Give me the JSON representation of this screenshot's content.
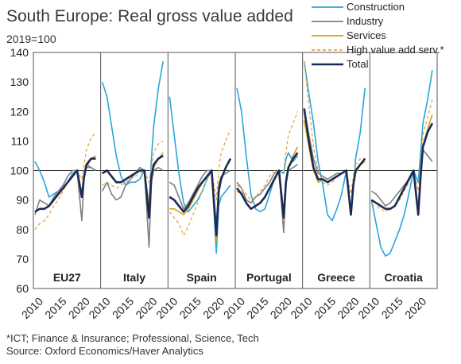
{
  "chart_data": {
    "type": "line",
    "title": "South Europe: Real gross value added",
    "subtitle": "2019=100",
    "ylim": [
      60,
      140
    ],
    "yticks": [
      60,
      70,
      80,
      90,
      100,
      110,
      120,
      130,
      140
    ],
    "xticks": [
      "2010",
      "2015",
      "2020"
    ],
    "legend_position": "top-right",
    "footnote": "*ICT; Finance & Insurance; Professional, Science, Tech",
    "source": "Source: Oxford Economics/Haver Analytics",
    "series": [
      {
        "key": "construction",
        "name": "Construction",
        "color": "#2aa6d8",
        "dash": false
      },
      {
        "key": "industry",
        "name": "Industry",
        "color": "#7f7f7f",
        "dash": false
      },
      {
        "key": "services",
        "name": "Services",
        "color": "#d6a21e",
        "dash": false
      },
      {
        "key": "hvas",
        "name": "High value add serv.*",
        "color": "#e0a84a",
        "dash": true
      },
      {
        "key": "total",
        "name": "Total",
        "color": "#1b2a55",
        "dash": false
      }
    ],
    "panels": [
      {
        "name": "EU27",
        "x": [
          2010,
          2011,
          2012,
          2013,
          2014,
          2015,
          2016,
          2017,
          2018,
          2019,
          2020,
          2020.5,
          2021,
          2022,
          2023
        ],
        "construction": [
          103,
          100,
          96,
          91,
          92,
          93,
          94,
          96,
          99,
          100,
          91,
          97,
          101,
          101,
          100
        ],
        "industry": [
          85,
          90,
          89,
          88,
          91,
          93,
          95,
          98,
          100,
          100,
          83,
          97,
          102,
          101,
          100
        ],
        "services": [
          86,
          87,
          87,
          88,
          90,
          92,
          94,
          96,
          98,
          100,
          92,
          98,
          101,
          104,
          105
        ],
        "hvas": [
          80,
          82,
          83,
          85,
          88,
          90,
          93,
          96,
          98,
          100,
          97,
          102,
          107,
          111,
          113
        ],
        "total": [
          86,
          87,
          87,
          88,
          90,
          92,
          94,
          96,
          98,
          100,
          91,
          98,
          102,
          104,
          104
        ]
      },
      {
        "name": "Italy",
        "x": [
          2010,
          2011,
          2012,
          2013,
          2014,
          2015,
          2016,
          2017,
          2018,
          2019,
          2020,
          2020.5,
          2021,
          2022,
          2023
        ],
        "construction": [
          130,
          125,
          115,
          105,
          98,
          95,
          96,
          96,
          97,
          100,
          88,
          104,
          115,
          128,
          137
        ],
        "industry": [
          93,
          96,
          92,
          90,
          91,
          95,
          97,
          99,
          101,
          100,
          74,
          96,
          100,
          101,
          100
        ],
        "services": [
          99,
          100,
          98,
          96,
          96,
          97,
          98,
          99,
          100,
          100,
          88,
          97,
          101,
          104,
          106
        ],
        "hvas": [
          95,
          96,
          95,
          94,
          95,
          96,
          97,
          98,
          99,
          100,
          96,
          101,
          106,
          109,
          110
        ],
        "total": [
          99,
          100,
          98,
          96,
          96,
          97,
          98,
          99,
          100,
          100,
          84,
          98,
          102,
          104,
          105
        ]
      },
      {
        "name": "Spain",
        "x": [
          2010,
          2011,
          2012,
          2013,
          2014,
          2015,
          2016,
          2017,
          2018,
          2019,
          2020,
          2020.5,
          2021,
          2022,
          2023
        ],
        "construction": [
          125,
          112,
          99,
          89,
          86,
          88,
          90,
          93,
          97,
          100,
          72,
          88,
          91,
          93,
          95
        ],
        "industry": [
          96,
          95,
          91,
          87,
          89,
          92,
          95,
          98,
          100,
          100,
          81,
          95,
          98,
          99,
          100
        ],
        "services": [
          87,
          87,
          86,
          85,
          87,
          90,
          93,
          96,
          98,
          100,
          76,
          92,
          97,
          101,
          104
        ],
        "hvas": [
          86,
          84,
          82,
          78,
          81,
          85,
          89,
          93,
          97,
          100,
          90,
          100,
          106,
          110,
          114
        ],
        "total": [
          91,
          90,
          88,
          86,
          88,
          91,
          94,
          96,
          98,
          100,
          78,
          93,
          97,
          101,
          104
        ]
      },
      {
        "name": "Portugal",
        "x": [
          2010,
          2011,
          2012,
          2013,
          2014,
          2015,
          2016,
          2017,
          2018,
          2019,
          2020,
          2020.5,
          2021,
          2022,
          2023
        ],
        "construction": [
          128,
          120,
          105,
          92,
          87,
          86,
          87,
          92,
          97,
          100,
          99,
          104,
          106,
          103,
          105
        ],
        "industry": [
          96,
          94,
          90,
          89,
          91,
          92,
          94,
          96,
          99,
          100,
          79,
          96,
          100,
          101,
          102
        ],
        "services": [
          93,
          92,
          89,
          87,
          88,
          89,
          91,
          94,
          97,
          100,
          83,
          97,
          101,
          105,
          108
        ],
        "hvas": [
          95,
          94,
          92,
          90,
          91,
          93,
          95,
          98,
          100,
          100,
          100,
          106,
          112,
          116,
          120
        ],
        "total": [
          94,
          92,
          89,
          87,
          88,
          89,
          91,
          94,
          97,
          100,
          84,
          96,
          101,
          104,
          106
        ]
      },
      {
        "name": "Greece",
        "x": [
          2010,
          2011,
          2012,
          2013,
          2014,
          2015,
          2016,
          2017,
          2018,
          2019,
          2020,
          2020.5,
          2021,
          2022,
          2023
        ],
        "construction": [
          137,
          126,
          116,
          103,
          95,
          85,
          83,
          87,
          92,
          100,
          86,
          94,
          104,
          113,
          128
        ],
        "industry": [
          121,
          112,
          104,
          99,
          98,
          97,
          98,
          99,
          99,
          100,
          85,
          96,
          100,
          102,
          104
        ],
        "services": [
          117,
          108,
          100,
          96,
          97,
          96,
          97,
          98,
          99,
          100,
          85,
          95,
          99,
          102,
          103
        ],
        "hvas": [
          137,
          122,
          108,
          100,
          96,
          95,
          96,
          98,
          99,
          100,
          92,
          98,
          102,
          104,
          104
        ],
        "total": [
          121,
          110,
          101,
          97,
          97,
          96,
          97,
          98,
          99,
          100,
          85,
          95,
          100,
          102,
          104
        ]
      },
      {
        "name": "Croatia",
        "x": [
          2010,
          2011,
          2012,
          2013,
          2014,
          2015,
          2016,
          2017,
          2018,
          2019,
          2020,
          2020.5,
          2021,
          2022,
          2023
        ],
        "construction": [
          90,
          82,
          74,
          71,
          72,
          76,
          80,
          85,
          92,
          100,
          96,
          106,
          116,
          124,
          134
        ],
        "industry": [
          93,
          92,
          90,
          88,
          89,
          91,
          93,
          95,
          97,
          100,
          85,
          98,
          107,
          105,
          103
        ],
        "services": [
          90,
          89,
          88,
          87,
          87,
          88,
          91,
          94,
          97,
          100,
          86,
          98,
          108,
          114,
          119
        ],
        "hvas": [
          88,
          88,
          87,
          86,
          87,
          88,
          90,
          93,
          96,
          100,
          93,
          102,
          112,
          118,
          124
        ],
        "total": [
          90,
          89,
          88,
          87,
          87,
          88,
          91,
          94,
          97,
          100,
          85,
          98,
          108,
          113,
          116
        ]
      }
    ]
  }
}
